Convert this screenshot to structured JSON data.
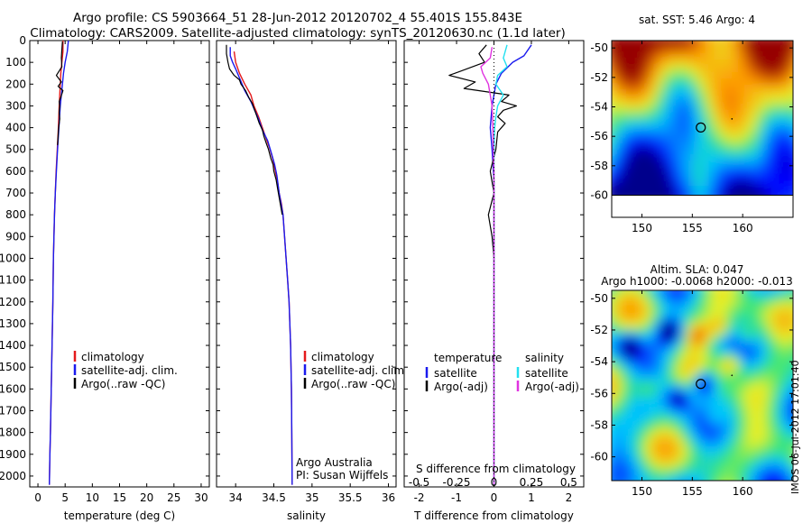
{
  "header": {
    "title_line1": "Argo profile: CS 5903664_51 28-Jun-2012 20120702_4 55.401S 155.843E",
    "title_line2": "Climatology: CARS2009. Satellite-adjusted climatology: synTS_20120630.nc (1.1d later)"
  },
  "colors": {
    "climatology": "#e41a1c",
    "satellite": "#1a1aee",
    "argo": "#000000",
    "satellite_salinity": "#22e0f0",
    "argo_salinity_adj": "#e033e0"
  },
  "chart_data": [
    {
      "type": "line",
      "panel": "temperature",
      "xlabel": "temperature (deg C)",
      "ylabel": "",
      "xlim": [
        -1.5,
        31.5
      ],
      "ylim": [
        2050,
        0
      ],
      "xticks": [
        "0",
        "5",
        "10",
        "15",
        "20",
        "25",
        "30"
      ],
      "xtick_values": [
        0,
        5,
        10,
        15,
        20,
        25,
        30
      ],
      "yticks": [
        "0",
        "100",
        "200",
        "300",
        "400",
        "500",
        "600",
        "700",
        "800",
        "900",
        "1000",
        "1100",
        "1200",
        "1300",
        "1400",
        "1500",
        "1600",
        "1700",
        "1800",
        "1900",
        "2000"
      ],
      "ytick_values": [
        0,
        100,
        200,
        300,
        400,
        500,
        600,
        700,
        800,
        900,
        1000,
        1100,
        1200,
        1300,
        1400,
        1500,
        1600,
        1700,
        1800,
        1900,
        2000
      ],
      "legend": [
        "climatology",
        "satellite-adj. clim.",
        "Argo(..raw -QC)"
      ],
      "series": [
        {
          "name": "climatology",
          "color": "#e41a1c",
          "width": 1.4,
          "points": [
            [
              4.6,
              0
            ],
            [
              4.6,
              50
            ],
            [
              4.4,
              100
            ],
            [
              4.2,
              150
            ],
            [
              4.1,
              200
            ],
            [
              4.0,
              250
            ],
            [
              3.9,
              300
            ],
            [
              3.75,
              400
            ],
            [
              3.55,
              500
            ],
            [
              3.35,
              600
            ],
            [
              3.2,
              700
            ],
            [
              3.05,
              800
            ],
            [
              2.95,
              900
            ],
            [
              2.85,
              1000
            ],
            [
              2.75,
              1200
            ],
            [
              2.6,
              1400
            ],
            [
              2.45,
              1600
            ],
            [
              2.3,
              1800
            ],
            [
              2.2,
              1900
            ],
            [
              2.1,
              2040
            ]
          ]
        },
        {
          "name": "satellite-adj. clim.",
          "color": "#1a1aee",
          "width": 1.4,
          "points": [
            [
              5.6,
              0
            ],
            [
              5.4,
              50
            ],
            [
              5.0,
              100
            ],
            [
              4.7,
              150
            ],
            [
              4.5,
              200
            ],
            [
              4.3,
              250
            ],
            [
              4.1,
              300
            ],
            [
              3.85,
              400
            ],
            [
              3.6,
              500
            ],
            [
              3.4,
              600
            ],
            [
              3.2,
              700
            ],
            [
              3.05,
              800
            ],
            [
              2.95,
              900
            ],
            [
              2.85,
              1000
            ],
            [
              2.75,
              1200
            ],
            [
              2.6,
              1400
            ],
            [
              2.45,
              1600
            ],
            [
              2.3,
              1800
            ],
            [
              2.2,
              1900
            ],
            [
              2.1,
              2040
            ]
          ]
        },
        {
          "name": "Argo(..raw -QC)",
          "color": "#000000",
          "width": 1.2,
          "points": [
            [
              4.5,
              5
            ],
            [
              4.4,
              40
            ],
            [
              4.3,
              80
            ],
            [
              4.4,
              120
            ],
            [
              3.4,
              160
            ],
            [
              4.3,
              190
            ],
            [
              3.7,
              210
            ],
            [
              4.6,
              230
            ],
            [
              4.2,
              260
            ],
            [
              3.9,
              280
            ],
            [
              4.0,
              300
            ],
            [
              3.9,
              330
            ],
            [
              4.0,
              360
            ],
            [
              3.8,
              400
            ],
            [
              3.7,
              440
            ],
            [
              3.6,
              480
            ]
          ]
        }
      ]
    },
    {
      "type": "line",
      "panel": "salinity",
      "xlabel": "salinity",
      "ylabel": "",
      "xlim": [
        33.75,
        36.1
      ],
      "ylim": [
        2050,
        0
      ],
      "xticks": [
        "34",
        "34.5",
        "35",
        "35.5",
        "36"
      ],
      "xtick_values": [
        34,
        34.5,
        35,
        35.5,
        36
      ],
      "legend": [
        "climatology",
        "satellite-adj. clim.",
        "Argo(..raw -QC)"
      ],
      "annotations": [
        "Argo Australia",
        "PI: Susan Wijffels"
      ],
      "series": [
        {
          "name": "climatology",
          "color": "#e41a1c",
          "width": 1.4,
          "points": [
            [
              33.98,
              50
            ],
            [
              34.0,
              100
            ],
            [
              34.05,
              150
            ],
            [
              34.12,
              200
            ],
            [
              34.2,
              250
            ],
            [
              34.24,
              300
            ],
            [
              34.3,
              350
            ],
            [
              34.35,
              400
            ],
            [
              34.4,
              450
            ],
            [
              34.45,
              500
            ],
            [
              34.49,
              550
            ],
            [
              34.52,
              600
            ],
            [
              34.55,
              650
            ],
            [
              34.57,
              700
            ],
            [
              34.6,
              750
            ],
            [
              34.62,
              800
            ],
            [
              34.64,
              900
            ],
            [
              34.66,
              1000
            ],
            [
              34.68,
              1100
            ],
            [
              34.7,
              1200
            ],
            [
              34.72,
              1400
            ],
            [
              34.73,
              1600
            ],
            [
              34.735,
              1800
            ],
            [
              34.74,
              2040
            ]
          ]
        },
        {
          "name": "satellite-adj. clim.",
          "color": "#1a1aee",
          "width": 1.4,
          "points": [
            [
              33.93,
              30
            ],
            [
              33.93,
              70
            ],
            [
              33.96,
              100
            ],
            [
              34.0,
              130
            ],
            [
              34.06,
              180
            ],
            [
              34.12,
              230
            ],
            [
              34.2,
              280
            ],
            [
              34.25,
              320
            ],
            [
              34.3,
              360
            ],
            [
              34.35,
              410
            ],
            [
              34.42,
              460
            ],
            [
              34.47,
              520
            ],
            [
              34.51,
              570
            ],
            [
              34.54,
              620
            ],
            [
              34.57,
              700
            ],
            [
              34.6,
              760
            ],
            [
              34.62,
              800
            ],
            [
              34.64,
              900
            ],
            [
              34.66,
              1000
            ],
            [
              34.68,
              1100
            ],
            [
              34.7,
              1200
            ],
            [
              34.72,
              1400
            ],
            [
              34.73,
              1600
            ],
            [
              34.735,
              1800
            ],
            [
              34.74,
              2040
            ]
          ]
        },
        {
          "name": "Argo(..raw -QC)",
          "color": "#000000",
          "width": 1.2,
          "points": [
            [
              33.88,
              20
            ],
            [
              33.88,
              60
            ],
            [
              33.9,
              100
            ],
            [
              33.92,
              130
            ],
            [
              33.98,
              160
            ],
            [
              34.05,
              180
            ],
            [
              34.07,
              200
            ],
            [
              34.13,
              230
            ],
            [
              34.17,
              260
            ],
            [
              34.22,
              290
            ],
            [
              34.25,
              320
            ],
            [
              34.28,
              350
            ],
            [
              34.31,
              380
            ],
            [
              34.35,
              410
            ],
            [
              34.37,
              440
            ],
            [
              34.4,
              470
            ],
            [
              34.43,
              500
            ],
            [
              34.46,
              540
            ],
            [
              34.49,
              570
            ],
            [
              34.5,
              600
            ],
            [
              34.53,
              640
            ],
            [
              34.55,
              680
            ],
            [
              34.57,
              720
            ],
            [
              34.59,
              760
            ],
            [
              34.61,
              800
            ]
          ]
        }
      ]
    },
    {
      "type": "line",
      "panel": "difference",
      "xlabel": "T difference from climatology",
      "xlabel_top": "S difference from climatology",
      "xlim": [
        -2.4,
        2.4
      ],
      "ylim": [
        2050,
        0
      ],
      "xticks": [
        "-2",
        "-1",
        "0",
        "1",
        "2"
      ],
      "xtick_values": [
        -2,
        -1,
        0,
        1,
        2
      ],
      "s_ticks": [
        "-0.5",
        "-0.25",
        "0",
        "0.25",
        "0.5"
      ],
      "s_tick_values": [
        -0.5,
        -0.25,
        0,
        0.25,
        0.5
      ],
      "legend_temperature_title": "temperature",
      "legend_temperature": [
        "satellite",
        "Argo(-adj)"
      ],
      "legend_salinity_title": "salinity",
      "legend_salinity": [
        "satellite",
        "Argo(-adj)"
      ],
      "series": [
        {
          "name": "T satellite",
          "color": "#1a1aee",
          "width": 1.4,
          "points": [
            [
              1.0,
              20
            ],
            [
              0.8,
              70
            ],
            [
              0.5,
              100
            ],
            [
              0.2,
              150
            ],
            [
              0.05,
              200
            ],
            [
              -0.05,
              300
            ],
            [
              -0.1,
              400
            ],
            [
              -0.05,
              500
            ],
            [
              0.0,
              650
            ],
            [
              0.0,
              900
            ],
            [
              0.0,
              1200
            ],
            [
              0.0,
              1500
            ],
            [
              0.0,
              1800
            ],
            [
              0.0,
              2040
            ]
          ]
        },
        {
          "name": "T Argo(-adj)",
          "color": "#000000",
          "width": 1.2,
          "points": [
            [
              -0.2,
              20
            ],
            [
              -0.4,
              60
            ],
            [
              -0.25,
              100
            ],
            [
              -1.2,
              160
            ],
            [
              -0.5,
              190
            ],
            [
              -0.8,
              220
            ],
            [
              0.4,
              250
            ],
            [
              0.2,
              280
            ],
            [
              0.6,
              300
            ],
            [
              0.25,
              320
            ],
            [
              0.1,
              350
            ],
            [
              0.3,
              380
            ],
            [
              0.1,
              420
            ],
            [
              0.05,
              500
            ],
            [
              -0.1,
              600
            ],
            [
              0.0,
              700
            ],
            [
              -0.15,
              800
            ],
            [
              -0.05,
              900
            ],
            [
              0.0,
              1000
            ]
          ]
        },
        {
          "name": "S satellite",
          "color": "#22e0f0",
          "width": 1.4,
          "points": [
            [
              0.35,
              20
            ],
            [
              0.25,
              80
            ],
            [
              0.35,
              120
            ],
            [
              0.1,
              160
            ],
            [
              0.05,
              200
            ],
            [
              0.25,
              250
            ],
            [
              0.1,
              300
            ],
            [
              0.05,
              350
            ],
            [
              0.02,
              400
            ],
            [
              0.0,
              500
            ],
            [
              0.0,
              700
            ],
            [
              0.0,
              1000
            ],
            [
              0.0,
              1400
            ],
            [
              0.0,
              1800
            ],
            [
              0.0,
              2040
            ]
          ]
        },
        {
          "name": "S Argo(-adj)",
          "color": "#e033e0",
          "width": 1.4,
          "points": [
            [
              -0.05,
              30
            ],
            [
              -0.1,
              80
            ],
            [
              -0.35,
              120
            ],
            [
              -0.3,
              150
            ],
            [
              -0.15,
              200
            ],
            [
              -0.1,
              250
            ],
            [
              -0.05,
              300
            ],
            [
              -0.03,
              400
            ],
            [
              -0.02,
              500
            ],
            [
              0.0,
              600
            ],
            [
              0.0,
              800
            ],
            [
              0.0,
              1000
            ],
            [
              0.0,
              1400
            ],
            [
              0.0,
              1800
            ],
            [
              0.0,
              2040
            ]
          ]
        }
      ]
    }
  ],
  "maps": [
    {
      "title": "sat. SST: 5.46 Argo: 4",
      "title_line2": "",
      "xticks": [
        "150",
        "155",
        "160"
      ],
      "xtick_values": [
        150,
        155,
        160
      ],
      "yticks": [
        "-50",
        "-52",
        "-54",
        "-56",
        "-58",
        "-60"
      ],
      "ytick_values": [
        -50,
        -52,
        -54,
        -56,
        -58,
        -60
      ],
      "xlim": [
        147,
        165
      ],
      "ylim": [
        -61.5,
        -49.5
      ],
      "data_extent_ylim": [
        -60,
        -49.5
      ],
      "float_position": [
        155.843,
        -55.401
      ]
    },
    {
      "title": "Altim. SLA: 0.047",
      "title_line2": "Argo h1000: -0.0068 h2000: -0.013",
      "xticks": [
        "150",
        "155",
        "160"
      ],
      "xtick_values": [
        150,
        155,
        160
      ],
      "yticks": [
        "-50",
        "-52",
        "-54",
        "-56",
        "-58",
        "-60"
      ],
      "ytick_values": [
        -50,
        -52,
        -54,
        -56,
        -58,
        -60
      ],
      "xlim": [
        147,
        165
      ],
      "ylim": [
        -61.5,
        -49.5
      ],
      "data_extent_ylim": [
        -61.5,
        -49.5
      ],
      "float_position": [
        155.843,
        -55.401
      ]
    }
  ],
  "footer": {
    "stamp": "IMOS 06-Jul-2012 17:01:40"
  }
}
